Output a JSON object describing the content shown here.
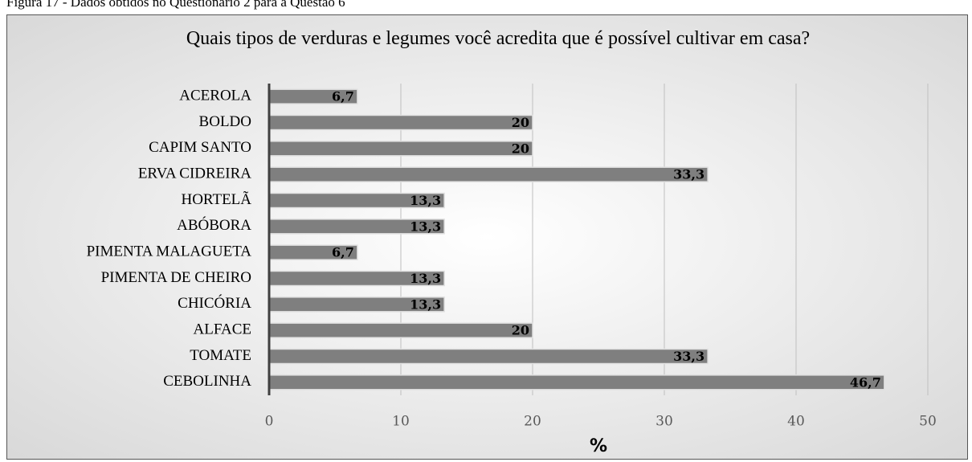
{
  "caption": "Figura 17 - Dados obtidos no Questionário 2 para a Questão 6",
  "chart_data": {
    "type": "bar",
    "orientation": "horizontal",
    "title": "Quais tipos de verduras e legumes você acredita que é possível cultivar em casa?",
    "categories": [
      "ACEROLA",
      "BOLDO",
      "CAPIM SANTO",
      "ERVA CIDREIRA",
      "HORTELÃ",
      "ABÓBORA",
      "PIMENTA MALAGUETA",
      "PIMENTA DE CHEIRO",
      "CHICÓRIA",
      "ALFACE",
      "TOMATE",
      "CEBOLINHA"
    ],
    "values": [
      6.7,
      20,
      20,
      33.3,
      13.3,
      13.3,
      6.7,
      13.3,
      13.3,
      20,
      33.3,
      46.7
    ],
    "value_labels": [
      "6,7",
      "20",
      "20",
      "33,3",
      "13,3",
      "13,3",
      "6,7",
      "13,3",
      "13,3",
      "20",
      "33,3",
      "46,7"
    ],
    "color": "#7f7f7f",
    "xlim": [
      0,
      50
    ],
    "xticks": [
      0,
      10,
      20,
      30,
      40,
      50
    ],
    "grid": true,
    "xlabel": "%"
  }
}
